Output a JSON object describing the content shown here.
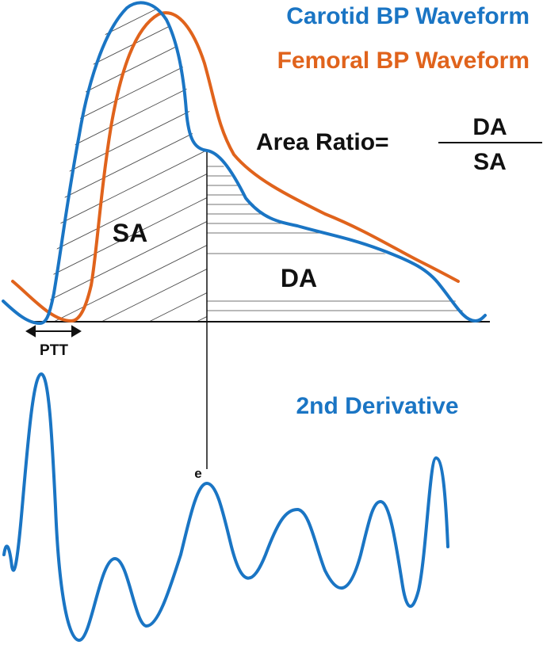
{
  "legend": {
    "carotid": "Carotid BP Waveform",
    "femoral": "Femoral BP Waveform"
  },
  "formula": {
    "lhs": "Area Ratio=",
    "numerator": "DA",
    "denominator": "SA"
  },
  "regions": {
    "systolic": "SA",
    "diastolic": "DA"
  },
  "ptt_label": "PTT",
  "derivative": {
    "title": "2nd Derivative",
    "point_label": "e"
  },
  "colors": {
    "carotid": "#1a75c4",
    "femoral": "#e0631c",
    "ink": "#111111"
  }
}
